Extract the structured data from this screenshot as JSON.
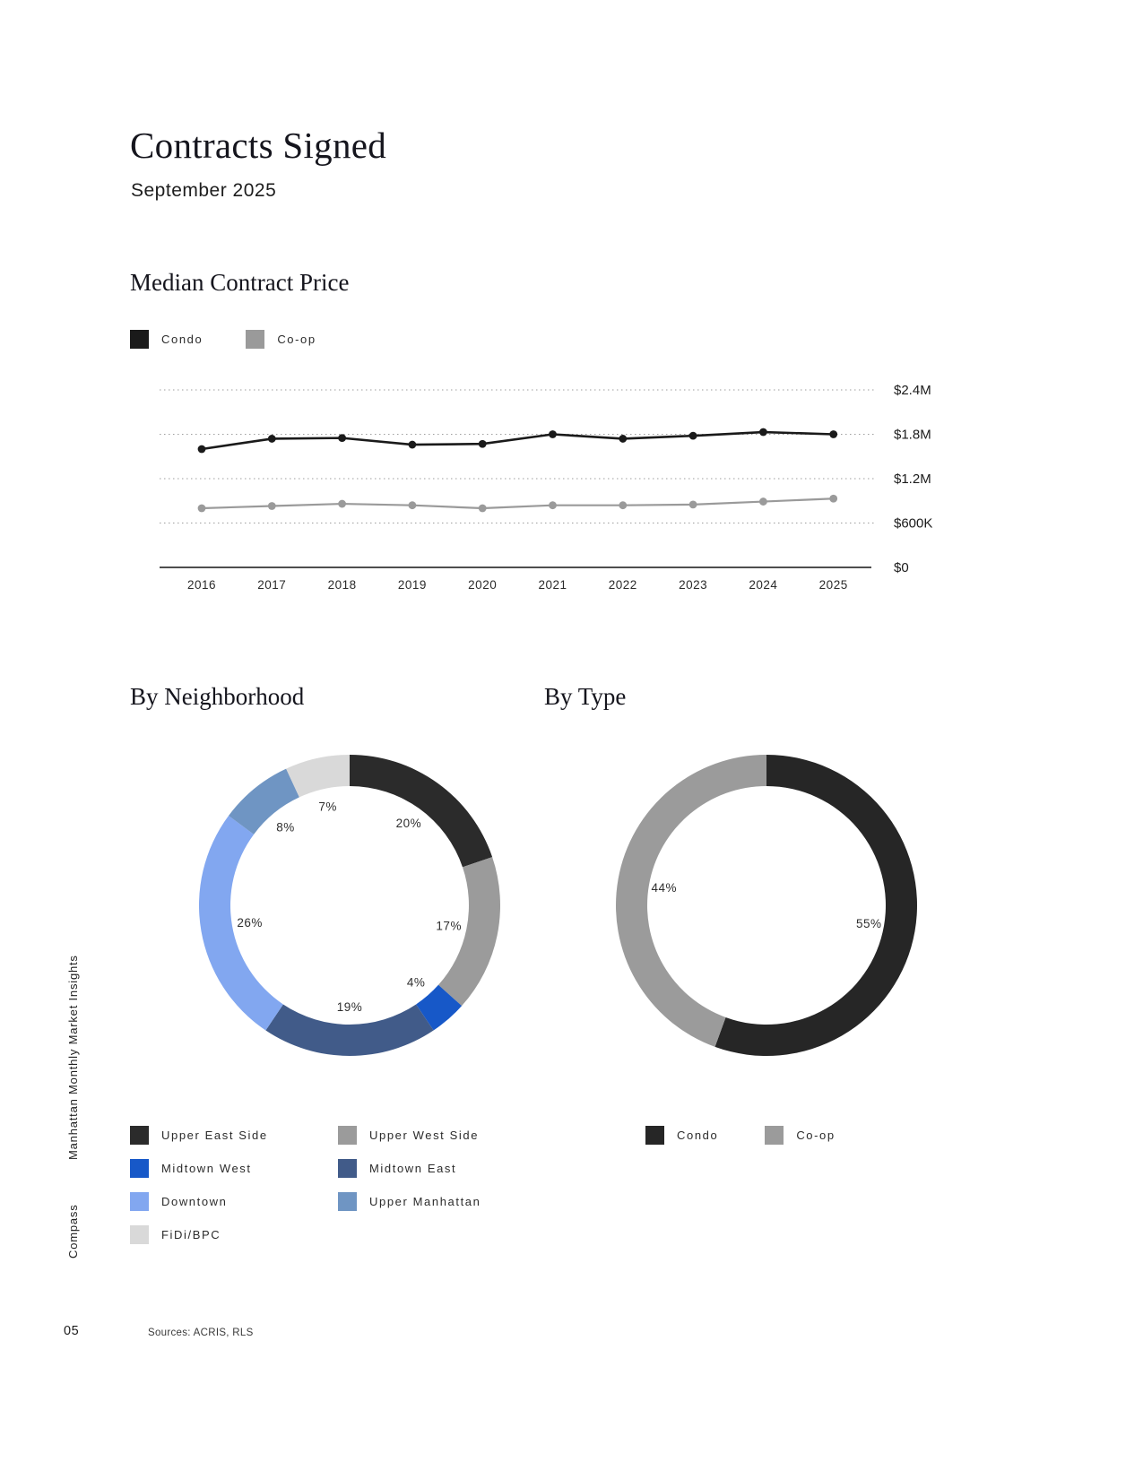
{
  "page": {
    "title": "Contracts Signed",
    "subtitle": "September 2025",
    "rail_top": "Manhattan Monthly Market Insights",
    "rail_bottom": "Compass",
    "page_number": "05",
    "sources": "Sources: ACRIS, RLS"
  },
  "colors": {
    "condo": "#1a1a1a",
    "coop": "#9a9a9a",
    "grid_dotted": "#9e9e9e",
    "axis": "#141414"
  },
  "chart_data": [
    {
      "id": "median-contract-price",
      "type": "line",
      "title": "Median Contract Price",
      "x": [
        "2016",
        "2017",
        "2018",
        "2019",
        "2020",
        "2021",
        "2022",
        "2023",
        "2024",
        "2025"
      ],
      "series": [
        {
          "name": "Condo",
          "color": "#1a1a1a",
          "values_musd": [
            1.6,
            1.74,
            1.75,
            1.66,
            1.67,
            1.8,
            1.74,
            1.78,
            1.83,
            1.8
          ]
        },
        {
          "name": "Co-op",
          "color": "#9a9a9a",
          "values_musd": [
            0.8,
            0.83,
            0.86,
            0.84,
            0.8,
            0.84,
            0.84,
            0.85,
            0.89,
            0.93
          ]
        }
      ],
      "ylim": [
        0,
        2.4
      ],
      "yticks": [
        {
          "value": 2.4,
          "label": "$2.4M"
        },
        {
          "value": 1.8,
          "label": "$1.8M"
        },
        {
          "value": 1.2,
          "label": "$1.2M"
        },
        {
          "value": 0.6,
          "label": "$600K"
        },
        {
          "value": 0,
          "label": "$0"
        }
      ],
      "grid": "dotted-horizontal",
      "legend_position": "top-left"
    },
    {
      "id": "by-neighborhood",
      "type": "pie",
      "subtype": "donut",
      "title": "By Neighborhood",
      "slices": [
        {
          "label": "Upper East Side",
          "value": 20,
          "color": "#2b2b2b"
        },
        {
          "label": "Upper West Side",
          "value": 17,
          "color": "#9b9b9b"
        },
        {
          "label": "Midtown West",
          "value": 4,
          "color": "#1758c8"
        },
        {
          "label": "Midtown East",
          "value": 19,
          "color": "#415b89"
        },
        {
          "label": "Downtown",
          "value": 26,
          "color": "#82a7f0"
        },
        {
          "label": "Upper Manhattan",
          "value": 8,
          "color": "#6f95c3"
        },
        {
          "label": "FiDi/BPC",
          "value": 7,
          "color": "#d9d9d9"
        }
      ],
      "start_angle": "top",
      "direction": "clockwise",
      "legend_position": "bottom"
    },
    {
      "id": "by-type",
      "type": "pie",
      "subtype": "donut",
      "title": "By Type",
      "slices": [
        {
          "label": "Condo",
          "value": 55,
          "color": "#262626"
        },
        {
          "label": "Co-op",
          "value": 44,
          "color": "#9b9b9b"
        }
      ],
      "start_angle": "top",
      "direction": "clockwise",
      "legend_position": "bottom"
    }
  ]
}
